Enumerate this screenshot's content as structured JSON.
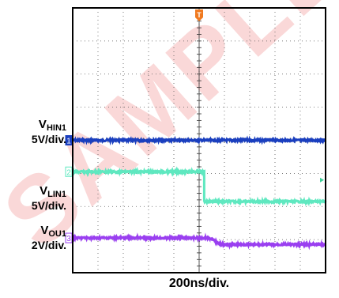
{
  "watermark": "SAMPLE",
  "trigger_marker": "T",
  "channels": [
    {
      "name_main": "V",
      "name_sub": "HIN1",
      "scale": "5V/div.",
      "marker": "1",
      "color": "#1a3fbf"
    },
    {
      "name_main": "V",
      "name_sub": "LIN1",
      "scale": "5V/div.",
      "marker": "2",
      "color": "#5fe8c0"
    },
    {
      "name_main": "V",
      "name_sub": "OU1",
      "scale": "2V/div.",
      "marker": "3",
      "color": "#9a3ff0"
    }
  ],
  "chart_data": {
    "type": "line",
    "xlabel": "200ns/div.",
    "x_divisions": 10,
    "y_divisions": 8,
    "time_per_div_ns": 200,
    "x_unit": "div",
    "xlim": [
      0,
      10
    ],
    "ylim": [
      0,
      8
    ],
    "series": [
      {
        "name": "VHIN1",
        "x": [
          0,
          10
        ],
        "y": [
          4.0,
          4.0
        ],
        "color": "#1a3fbf"
      },
      {
        "name": "VLIN1",
        "x": [
          0,
          5.2,
          5.2,
          10
        ],
        "y": [
          3.05,
          3.05,
          2.15,
          2.15
        ],
        "color": "#5fe8c0"
      },
      {
        "name": "VOU1",
        "x": [
          0,
          5.4,
          5.9,
          10
        ],
        "y": [
          1.05,
          1.05,
          0.85,
          0.85
        ],
        "color": "#9a3ff0"
      }
    ],
    "trigger_x_div": 5.0,
    "grid": true
  }
}
